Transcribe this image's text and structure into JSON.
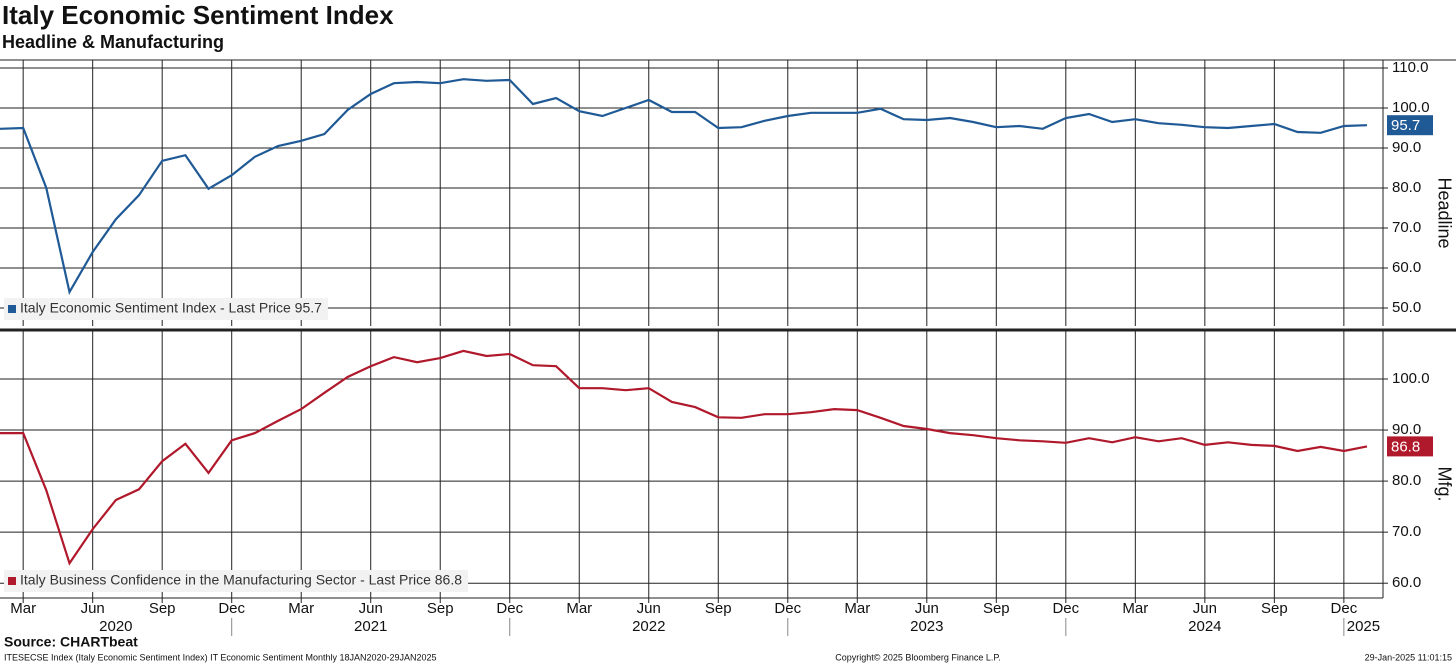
{
  "title": "Italy Economic Sentiment Index",
  "subtitle": "Headline & Manufacturing",
  "source": "Source: CHARTbeat",
  "footer": {
    "left": "ITESECSE Index (Italy Economic Sentiment Index) IT Economic Sentiment  Monthly 18JAN2020-29JAN2025",
    "center": "Copyright© 2025 Bloomberg Finance L.P.",
    "right": "29-Jan-2025 11:01:15"
  },
  "chart_data": [
    {
      "type": "line",
      "x": [
        "2020-02",
        "2020-03",
        "2020-04",
        "2020-05",
        "2020-06",
        "2020-07",
        "2020-08",
        "2020-09",
        "2020-10",
        "2020-11",
        "2020-12",
        "2021-01",
        "2021-02",
        "2021-03",
        "2021-04",
        "2021-05",
        "2021-06",
        "2021-07",
        "2021-08",
        "2021-09",
        "2021-10",
        "2021-11",
        "2021-12",
        "2022-01",
        "2022-02",
        "2022-03",
        "2022-04",
        "2022-05",
        "2022-06",
        "2022-07",
        "2022-08",
        "2022-09",
        "2022-10",
        "2022-11",
        "2022-12",
        "2023-01",
        "2023-02",
        "2023-03",
        "2023-04",
        "2023-05",
        "2023-06",
        "2023-07",
        "2023-08",
        "2023-09",
        "2023-10",
        "2023-11",
        "2023-12",
        "2024-01",
        "2024-02",
        "2024-03",
        "2024-04",
        "2024-05",
        "2024-06",
        "2024-07",
        "2024-08",
        "2024-09",
        "2024-10",
        "2024-11",
        "2024-12",
        "2025-01"
      ],
      "series": [
        {
          "name": "Italy Economic Sentiment Index - Last Price 95.7",
          "color": "#1f5a96",
          "values": [
            94.8,
            95.0,
            80.0,
            54.0,
            64.0,
            72.2,
            78.2,
            86.8,
            88.2,
            79.8,
            83.2,
            87.8,
            90.5,
            91.8,
            93.5,
            99.5,
            103.5,
            106.2,
            106.5,
            106.2,
            107.2,
            106.8,
            107.0,
            101.0,
            102.5,
            99.2,
            98.0,
            100.0,
            102.0,
            99.0,
            99.0,
            95.0,
            95.2,
            96.8,
            98.0,
            98.8,
            98.8,
            98.8,
            99.8,
            97.2,
            97.0,
            97.5,
            96.5,
            95.2,
            95.5,
            94.8,
            97.5,
            98.5,
            96.5,
            97.2,
            96.2,
            95.8,
            95.2,
            95.0,
            95.5,
            96.0,
            94.0,
            93.8,
            95.5,
            95.7
          ]
        }
      ],
      "ylim": [
        45.5,
        112
      ],
      "yticks": [
        {
          "value": 50,
          "label": "50.0"
        },
        {
          "value": 60,
          "label": "60.0"
        },
        {
          "value": 70,
          "label": "70.0"
        },
        {
          "value": 80,
          "label": "80.0"
        },
        {
          "value": 90,
          "label": "90.0"
        },
        {
          "value": 100,
          "label": "100.0"
        },
        {
          "value": 110,
          "label": "110.0"
        }
      ],
      "y_axis_title": "Headline",
      "grid": true,
      "legend": "lower left",
      "last_value_box": true
    },
    {
      "type": "line",
      "x": [
        "2020-02",
        "2020-03",
        "2020-04",
        "2020-05",
        "2020-06",
        "2020-07",
        "2020-08",
        "2020-09",
        "2020-10",
        "2020-11",
        "2020-12",
        "2021-01",
        "2021-02",
        "2021-03",
        "2021-04",
        "2021-05",
        "2021-06",
        "2021-07",
        "2021-08",
        "2021-09",
        "2021-10",
        "2021-11",
        "2021-12",
        "2022-01",
        "2022-02",
        "2022-03",
        "2022-04",
        "2022-05",
        "2022-06",
        "2022-07",
        "2022-08",
        "2022-09",
        "2022-10",
        "2022-11",
        "2022-12",
        "2023-01",
        "2023-02",
        "2023-03",
        "2023-04",
        "2023-05",
        "2023-06",
        "2023-07",
        "2023-08",
        "2023-09",
        "2023-10",
        "2023-11",
        "2023-12",
        "2024-01",
        "2024-02",
        "2024-03",
        "2024-04",
        "2024-05",
        "2024-06",
        "2024-07",
        "2024-08",
        "2024-09",
        "2024-10",
        "2024-11",
        "2024-12",
        "2025-01"
      ],
      "series": [
        {
          "name": "Italy Business Confidence in the Manufacturing Sector - Last Price 86.8",
          "color": "#b0182b",
          "values": [
            89.4,
            89.4,
            78.2,
            63.9,
            70.6,
            76.3,
            78.4,
            83.9,
            87.3,
            81.6,
            88.0,
            89.4,
            91.8,
            94.1,
            97.3,
            100.4,
            102.5,
            104.3,
            103.3,
            104.1,
            105.5,
            104.5,
            104.9,
            102.7,
            102.5,
            98.2,
            98.2,
            97.8,
            98.2,
            95.5,
            94.5,
            92.5,
            92.4,
            93.1,
            93.1,
            93.5,
            94.1,
            93.9,
            92.4,
            90.8,
            90.2,
            89.4,
            89.0,
            88.4,
            88.0,
            87.8,
            87.5,
            88.4,
            87.6,
            88.6,
            87.8,
            88.4,
            87.1,
            87.6,
            87.1,
            86.9,
            85.9,
            86.7,
            85.9,
            86.8
          ]
        }
      ],
      "ylim": [
        57.1,
        109.6
      ],
      "yticks": [
        {
          "value": 60,
          "label": "60.0"
        },
        {
          "value": 70,
          "label": "70.0"
        },
        {
          "value": 80,
          "label": "80.0"
        },
        {
          "value": 90,
          "label": "90.0"
        },
        {
          "value": 100,
          "label": "100.0"
        }
      ],
      "y_axis_title": "Mfg.",
      "grid": true,
      "legend": "lower left",
      "last_value_box": true,
      "xticks": [
        {
          "value": "2020-03",
          "label": "Mar"
        },
        {
          "value": "2020-06",
          "label": "Jun"
        },
        {
          "value": "2020-09",
          "label": "Sep"
        },
        {
          "value": "2020-12",
          "label": "Dec"
        },
        {
          "value": "2021-03",
          "label": "Mar"
        },
        {
          "value": "2021-06",
          "label": "Jun"
        },
        {
          "value": "2021-09",
          "label": "Sep"
        },
        {
          "value": "2021-12",
          "label": "Dec"
        },
        {
          "value": "2022-03",
          "label": "Mar"
        },
        {
          "value": "2022-06",
          "label": "Jun"
        },
        {
          "value": "2022-09",
          "label": "Sep"
        },
        {
          "value": "2022-12",
          "label": "Dec"
        },
        {
          "value": "2023-03",
          "label": "Mar"
        },
        {
          "value": "2023-06",
          "label": "Jun"
        },
        {
          "value": "2023-09",
          "label": "Sep"
        },
        {
          "value": "2023-12",
          "label": "Dec"
        },
        {
          "value": "2024-03",
          "label": "Mar"
        },
        {
          "value": "2024-06",
          "label": "Jun"
        },
        {
          "value": "2024-09",
          "label": "Sep"
        },
        {
          "value": "2024-12",
          "label": "Dec"
        }
      ],
      "year_labels": [
        "2020",
        "2021",
        "2022",
        "2023",
        "2024",
        "2025"
      ]
    }
  ]
}
